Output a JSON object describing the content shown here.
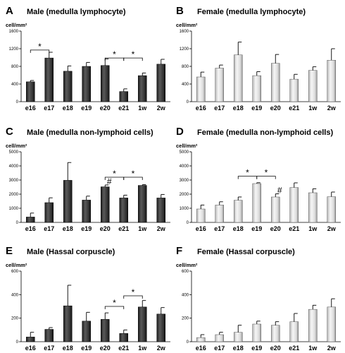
{
  "chart_data": [
    {
      "panel": "A",
      "type": "bar",
      "title": "Male (medulla lymphocyte)",
      "unit": "cell/mm²",
      "categories": [
        "e16",
        "e17",
        "e18",
        "e19",
        "e20",
        "e21",
        "1w",
        "2w"
      ],
      "values": [
        450,
        990,
        690,
        800,
        820,
        230,
        590,
        850
      ],
      "errors": [
        30,
        130,
        120,
        90,
        150,
        60,
        60,
        110
      ],
      "ylim": [
        0,
        1600
      ],
      "yticks": [
        0,
        400,
        800,
        1200,
        1600
      ],
      "bar_style": "dark",
      "significance": [
        {
          "from": 0,
          "to": 1,
          "y": 1170,
          "symbol": "*"
        },
        {
          "from": 4,
          "to": 5,
          "y": 990,
          "symbol": "*"
        },
        {
          "from": 5,
          "to": 6,
          "y": 990,
          "symbol": "*"
        }
      ],
      "markers": []
    },
    {
      "panel": "B",
      "type": "bar",
      "title": "Female (medulla lymphocyte)",
      "unit": "cell/mm²",
      "categories": [
        "e16",
        "e17",
        "e18",
        "e19",
        "e20",
        "e21",
        "1w",
        "2w"
      ],
      "values": [
        560,
        760,
        1060,
        590,
        870,
        510,
        710,
        940
      ],
      "errors": [
        110,
        70,
        290,
        90,
        200,
        110,
        80,
        260
      ],
      "ylim": [
        0,
        1600
      ],
      "yticks": [
        0,
        400,
        800,
        1200,
        1600
      ],
      "bar_style": "light",
      "significance": [],
      "markers": []
    },
    {
      "panel": "C",
      "type": "bar",
      "title": "Male (medulla non-lymphoid cells)",
      "unit": "cell/mm²",
      "categories": [
        "e16",
        "e17",
        "e18",
        "e19",
        "e20",
        "e21",
        "1w",
        "2w"
      ],
      "values": [
        380,
        1400,
        2980,
        1580,
        2520,
        1730,
        2620,
        1730
      ],
      "errors": [
        280,
        340,
        1260,
        280,
        130,
        200,
        50,
        250
      ],
      "ylim": [
        0,
        5000
      ],
      "yticks": [
        0,
        1000,
        2000,
        3000,
        4000,
        5000
      ],
      "bar_style": "dark",
      "significance": [
        {
          "from": 4,
          "to": 5,
          "y": 3200,
          "symbol": "*"
        },
        {
          "from": 5,
          "to": 6,
          "y": 3200,
          "symbol": "*"
        }
      ],
      "markers": [
        {
          "index": 4,
          "symbol": "#"
        }
      ]
    },
    {
      "panel": "D",
      "type": "bar",
      "title": "Female (medulla non-lymphoid cells)",
      "unit": "cell/mm²",
      "categories": [
        "e16",
        "e17",
        "e18",
        "e19",
        "e20",
        "e21",
        "1w",
        "2w"
      ],
      "values": [
        950,
        1230,
        1570,
        2750,
        1800,
        2470,
        2100,
        1820
      ],
      "errors": [
        280,
        230,
        230,
        60,
        220,
        330,
        280,
        330
      ],
      "ylim": [
        0,
        5000
      ],
      "yticks": [
        0,
        1000,
        2000,
        3000,
        4000,
        5000
      ],
      "bar_style": "light",
      "significance": [
        {
          "from": 2,
          "to": 3,
          "y": 3270,
          "symbol": "*"
        },
        {
          "from": 3,
          "to": 4,
          "y": 3270,
          "symbol": "*"
        }
      ],
      "markers": [
        {
          "index": 4,
          "symbol": "#"
        }
      ]
    },
    {
      "panel": "E",
      "type": "bar",
      "title": "Male (Hassal corpuscle)",
      "unit": "cell/mm²",
      "categories": [
        "e16",
        "e17",
        "e18",
        "e19",
        "e20",
        "e21",
        "1w",
        "2w"
      ],
      "values": [
        40,
        105,
        305,
        175,
        190,
        70,
        295,
        235
      ],
      "errors": [
        40,
        15,
        175,
        75,
        55,
        30,
        55,
        55
      ],
      "ylim": [
        0,
        600
      ],
      "yticks": [
        0,
        200,
        400,
        600
      ],
      "bar_style": "dark",
      "significance": [
        {
          "from": 4,
          "to": 5,
          "y": 300,
          "symbol": "*"
        },
        {
          "from": 5,
          "to": 6,
          "y": 390,
          "symbol": "*"
        }
      ],
      "markers": []
    },
    {
      "panel": "F",
      "type": "bar",
      "title": "Female (Hassal corpuscle)",
      "unit": "cell/mm²",
      "categories": [
        "e16",
        "e17",
        "e18",
        "e19",
        "e20",
        "e21",
        "1w",
        "2w"
      ],
      "values": [
        35,
        60,
        80,
        150,
        140,
        170,
        275,
        295
      ],
      "errors": [
        25,
        20,
        60,
        25,
        30,
        70,
        35,
        70
      ],
      "ylim": [
        0,
        600
      ],
      "yticks": [
        0,
        200,
        400,
        600
      ],
      "bar_style": "light",
      "significance": [],
      "markers": []
    }
  ]
}
